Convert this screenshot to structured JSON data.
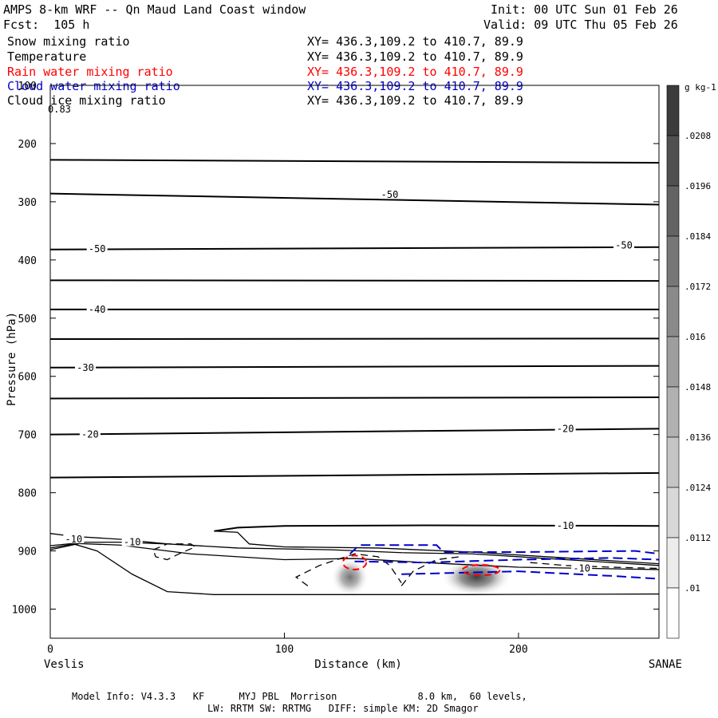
{
  "header": {
    "title": "AMPS 8-km WRF -- Qn Maud Land Coast window",
    "forecast": "Fcst:  105 h",
    "init": "Init: 00 UTC Sun 01 Feb 26",
    "valid": "Valid: 09 UTC Thu 05 Feb 26"
  },
  "fields": [
    {
      "label": "Snow mixing ratio",
      "xy": "XY= 436.3,109.2 to 410.7, 89.9",
      "color": "#000000"
    },
    {
      "label": "Temperature",
      "xy": "XY= 436.3,109.2 to 410.7, 89.9",
      "color": "#000000"
    },
    {
      "label": "Rain water mixing ratio",
      "xy": "XY= 436.3,109.2 to 410.7, 89.9",
      "color": "#ff0000"
    },
    {
      "label": "Cloud water mixing ratio",
      "xy": "XY= 436.3,109.2 to 410.7, 89.9",
      "color": "#0000cc"
    },
    {
      "label": "Cloud ice mixing ratio",
      "xy": "XY= 436.3,109.2 to 410.7, 89.9",
      "color": "#000000"
    }
  ],
  "chart_data": {
    "type": "cross-section",
    "title": "AMPS 8-km WRF -- Qn Maud Land Coast window",
    "xlabel": "Distance (km)",
    "ylabel": "Pressure (hPa)",
    "xlim": [
      0,
      260
    ],
    "ylim": [
      1050,
      100
    ],
    "x_ticks": [
      0,
      100,
      200
    ],
    "y_ticks": [
      100,
      200,
      300,
      400,
      500,
      600,
      700,
      800,
      900,
      1000
    ],
    "x_start_label": "Veslis",
    "x_end_label": "SANAE",
    "corner_value": "0.83",
    "colorbar": {
      "unit": "g kg-1",
      "ticks": [
        ".0208",
        ".0196",
        ".0184",
        ".0172",
        ".016",
        ".0148",
        ".0136",
        ".0124",
        ".0112",
        ".01"
      ],
      "values": [
        0.0208,
        0.0196,
        0.0184,
        0.0172,
        0.016,
        0.0148,
        0.0136,
        0.0124,
        0.0112,
        0.01
      ]
    },
    "temperature_isotherms": [
      {
        "x": [
          0,
          260
        ],
        "p": [
          228,
          233
        ]
      },
      {
        "x": [
          0,
          260
        ],
        "p": [
          286,
          305
        ],
        "label": "-50"
      },
      {
        "x": [
          0,
          260
        ],
        "p": [
          382,
          378
        ],
        "label": "-50"
      },
      {
        "x": [
          0,
          260
        ],
        "p": [
          435,
          436
        ]
      },
      {
        "x": [
          0,
          260
        ],
        "p": [
          485,
          485
        ],
        "label": "-40"
      },
      {
        "x": [
          0,
          260
        ],
        "p": [
          536,
          535
        ]
      },
      {
        "x": [
          0,
          260
        ],
        "p": [
          585,
          582
        ],
        "label": "-30"
      },
      {
        "x": [
          0,
          260
        ],
        "p": [
          638,
          636
        ]
      },
      {
        "x": [
          0,
          260
        ],
        "p": [
          700,
          690
        ],
        "label": "-20"
      },
      {
        "x": [
          0,
          260
        ],
        "p": [
          774,
          766
        ]
      },
      {
        "x": [
          70,
          80,
          100,
          160,
          260
        ],
        "p": [
          866,
          860,
          857,
          856,
          857
        ],
        "label": "-10"
      }
    ],
    "isotherm_labels": [
      {
        "text": "-50",
        "x": 145,
        "p": 288
      },
      {
        "text": "-50",
        "x": 20,
        "p": 381
      },
      {
        "text": "-50",
        "x": 245,
        "p": 375
      },
      {
        "text": "-40",
        "x": 20,
        "p": 485
      },
      {
        "text": "-30",
        "x": 15,
        "p": 585
      },
      {
        "text": "-20",
        "x": 17,
        "p": 700
      },
      {
        "text": "-20",
        "x": 220,
        "p": 690
      },
      {
        "text": "-10",
        "x": 220,
        "p": 857
      },
      {
        "text": "-10",
        "x": 10,
        "p": 880
      },
      {
        "text": "-10",
        "x": 35,
        "p": 885
      },
      {
        "text": "-10",
        "x": 227,
        "p": 930
      }
    ],
    "snow_shading": [
      {
        "x_center": 128,
        "p_center": 945,
        "half_width_km": 8,
        "max": 0.016
      },
      {
        "x_center": 182,
        "p_center": 945,
        "half_width_km": 15,
        "max": 0.0208
      }
    ],
    "rain_water_contours": [
      {
        "x_center": 130,
        "p_center": 920,
        "rx_km": 5,
        "rp_hpa": 24
      },
      {
        "x_center": 184,
        "p_center": 933,
        "rx_km": 8,
        "rp_hpa": 18
      }
    ]
  },
  "footer": {
    "line1": "Model Info: V4.3.3   KF      MYJ PBL  Morrison              8.0 km,  60 levels,",
    "line2": "LW: RRTM SW: RRTMG   DIFF: simple KM: 2D Smagor"
  }
}
